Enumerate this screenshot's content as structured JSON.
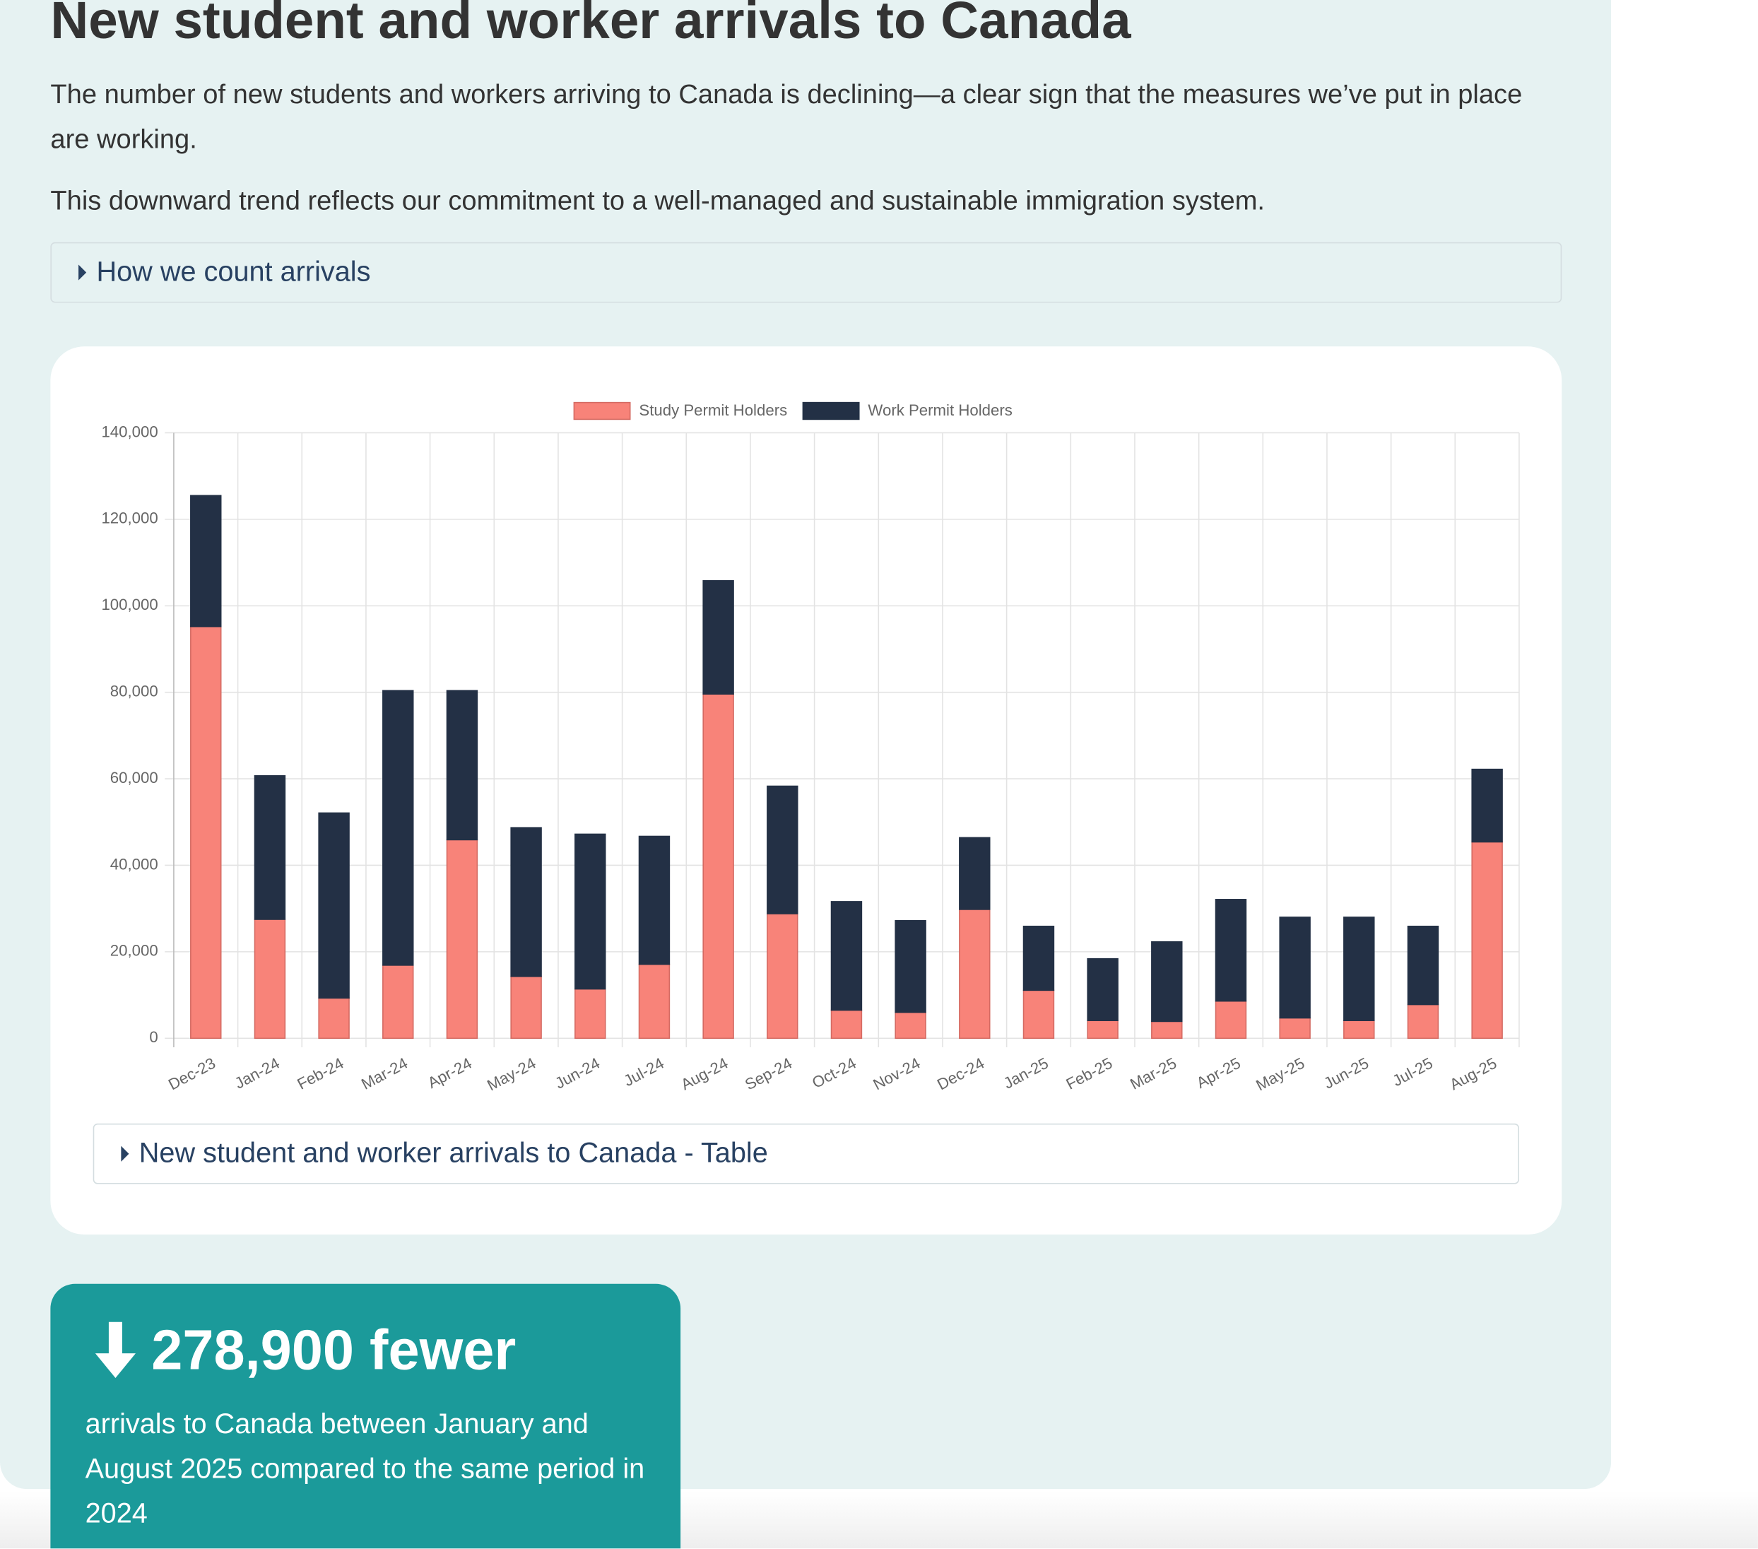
{
  "header": {
    "title": "New student and worker arrivals to Canada"
  },
  "intro": [
    "The number of new students and workers arriving to Canada is declining—a clear sign that the measures we’ve put in place are working.",
    "This downward trend reflects our commitment to a well-managed and sustainable immigration system."
  ],
  "details": {
    "label": "How we count arrivals"
  },
  "chart_data": {
    "type": "stacked-bar",
    "categories": [
      "Dec-23",
      "Jan-24",
      "Feb-24",
      "Mar-24",
      "Apr-24",
      "May-24",
      "Jun-24",
      "Jul-24",
      "Aug-24",
      "Sep-24",
      "Oct-24",
      "Nov-24",
      "Dec-24",
      "Jan-25",
      "Feb-25",
      "Mar-25",
      "Apr-25",
      "May-25",
      "Jun-25",
      "Jul-25",
      "Aug-25"
    ],
    "series": [
      {
        "name": "Study Permit Holders",
        "color": "#f88379",
        "values": [
          95200,
          27500,
          9300,
          16900,
          45900,
          14300,
          11400,
          17100,
          79600,
          28800,
          6500,
          6000,
          29800,
          11100,
          4100,
          3900,
          8600,
          4700,
          4100,
          7800,
          45400
        ]
      },
      {
        "name": "Work Permit Holders",
        "color": "#233045",
        "values": [
          30300,
          33200,
          42800,
          63500,
          34500,
          34400,
          35800,
          29600,
          26200,
          29500,
          25100,
          21200,
          16600,
          14800,
          14300,
          18400,
          23500,
          23300,
          23900,
          18100,
          16800
        ]
      }
    ],
    "ylim": [
      0,
      140000
    ],
    "yticks": [
      0,
      {
        "value": 20000,
        "label": "20,000"
      },
      {
        "value": 40000,
        "label": "40,000"
      },
      {
        "value": 60000,
        "label": "60,000"
      },
      {
        "value": 80000,
        "label": "80,000"
      },
      {
        "value": 100000,
        "label": "100,000"
      },
      {
        "value": 120000,
        "label": "120,000"
      },
      {
        "value": 140000,
        "label": "140,000"
      }
    ],
    "grid": true,
    "legend": "top"
  },
  "table_toggle": {
    "label": "New student and worker arrivals to Canada - Table"
  },
  "stat": {
    "headline": "278,900 fewer",
    "text": "arrivals to Canada between January and August 2025 compared to the same period in 2024"
  }
}
